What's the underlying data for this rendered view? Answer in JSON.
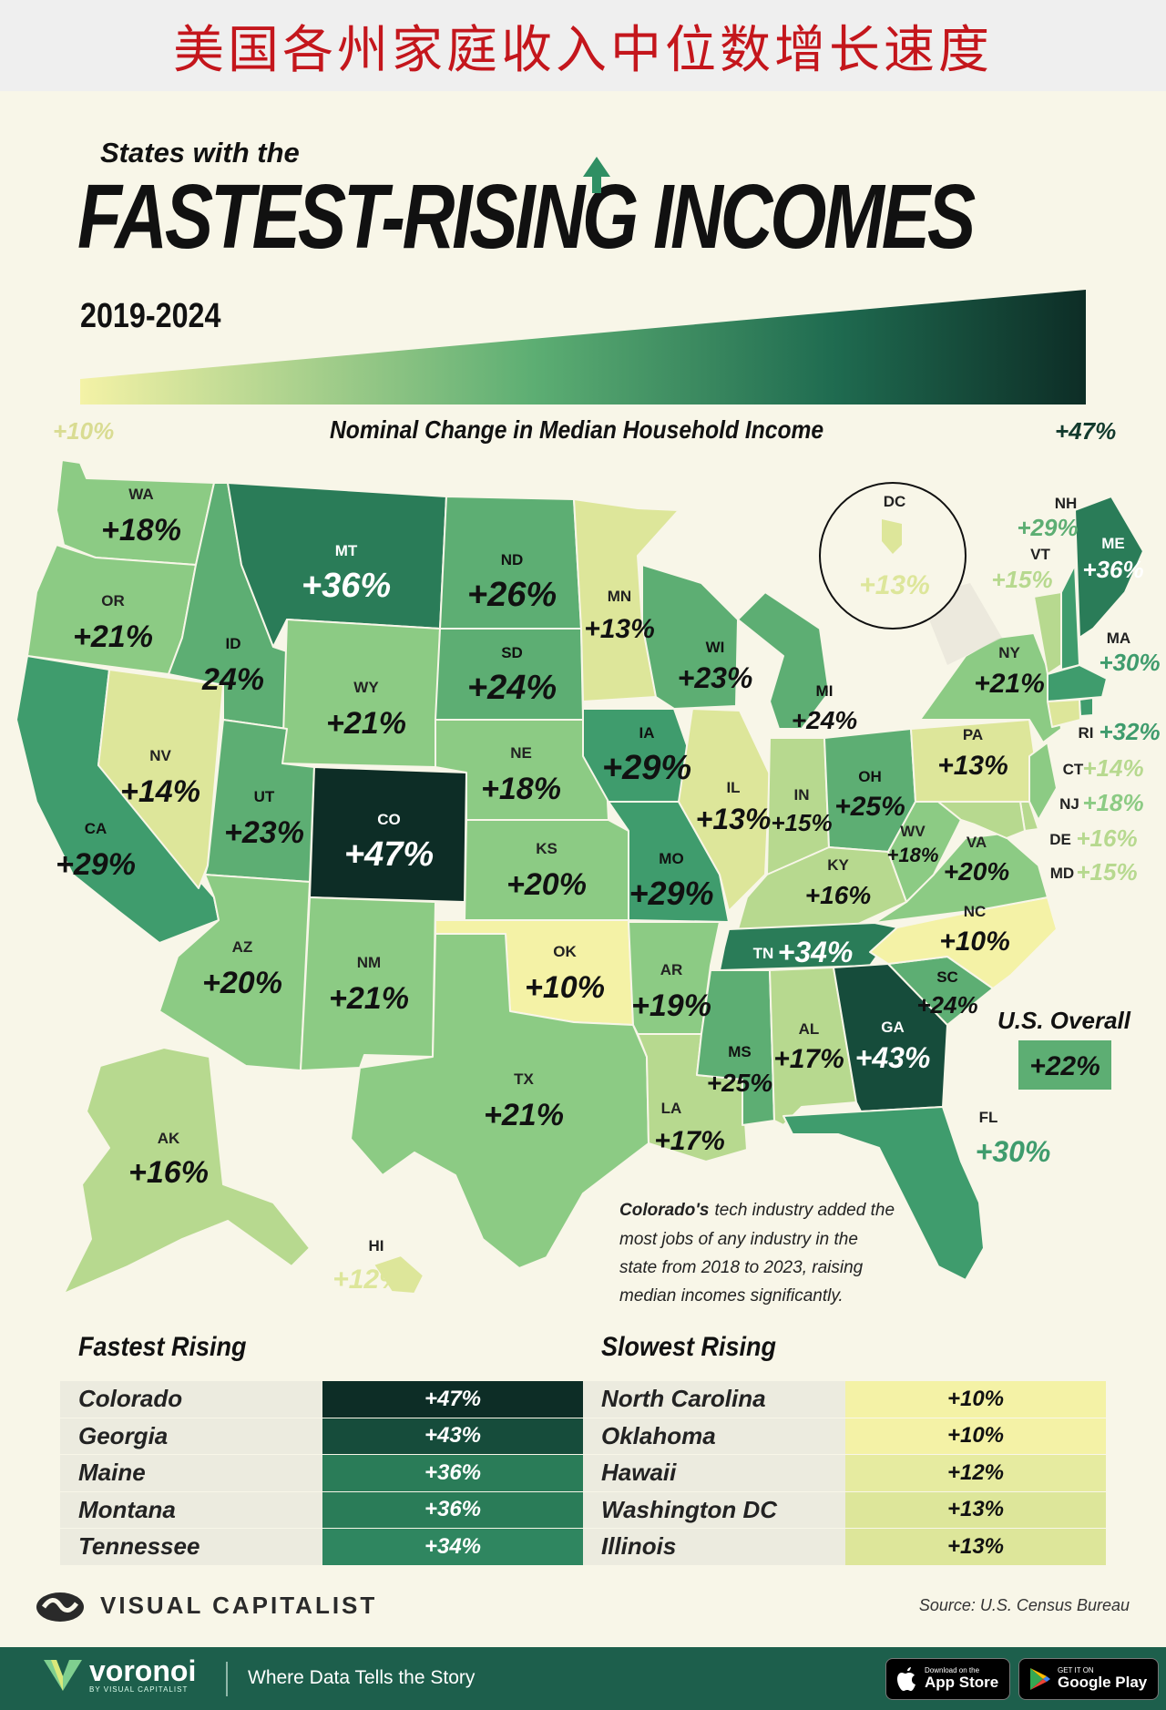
{
  "banner": {
    "cn_title": "美国各州家庭收入中位数增长速度"
  },
  "header": {
    "subtitle": "States with the",
    "title": "FASTEST-RISING INCOMES",
    "years": "2019-2024"
  },
  "legend": {
    "low": "+10%",
    "high": "+47%",
    "label": "Nominal Change in Median Household Income"
  },
  "colors": {
    "c10": "#f4f2a6",
    "c13": "#dde69a",
    "c16": "#b7d98f",
    "c20": "#8ccb84",
    "c24": "#5dae73",
    "c30": "#3f9c6d",
    "c35": "#2a7c58",
    "c43": "#164c3b",
    "c47": "#0d2d26"
  },
  "states": {
    "WA": {
      "code": "WA",
      "value": "+18%"
    },
    "OR": {
      "code": "OR",
      "value": "+21%"
    },
    "CA": {
      "code": "CA",
      "value": "+29%"
    },
    "NV": {
      "code": "NV",
      "value": "+14%"
    },
    "ID": {
      "code": "ID",
      "value": "24%"
    },
    "MT": {
      "code": "MT",
      "value": "+36%"
    },
    "WY": {
      "code": "WY",
      "value": "+21%"
    },
    "UT": {
      "code": "UT",
      "value": "+23%"
    },
    "CO": {
      "code": "CO",
      "value": "+47%"
    },
    "AZ": {
      "code": "AZ",
      "value": "+20%"
    },
    "NM": {
      "code": "NM",
      "value": "+21%"
    },
    "ND": {
      "code": "ND",
      "value": "+26%"
    },
    "SD": {
      "code": "SD",
      "value": "+24%"
    },
    "NE": {
      "code": "NE",
      "value": "+18%"
    },
    "KS": {
      "code": "KS",
      "value": "+20%"
    },
    "OK": {
      "code": "OK",
      "value": "+10%"
    },
    "TX": {
      "code": "TX",
      "value": "+21%"
    },
    "MN": {
      "code": "MN",
      "value": "+13%"
    },
    "IA": {
      "code": "IA",
      "value": "+29%"
    },
    "MO": {
      "code": "MO",
      "value": "+29%"
    },
    "AR": {
      "code": "AR",
      "value": "+19%"
    },
    "LA": {
      "code": "LA",
      "value": "+17%"
    },
    "WI": {
      "code": "WI",
      "value": "+23%"
    },
    "IL": {
      "code": "IL",
      "value": "+13%"
    },
    "MI": {
      "code": "MI",
      "value": "+24%"
    },
    "IN": {
      "code": "IN",
      "value": "+15%"
    },
    "OH": {
      "code": "OH",
      "value": "+25%"
    },
    "KY": {
      "code": "KY",
      "value": "+16%"
    },
    "TN": {
      "code": "TN",
      "value": "+34%"
    },
    "MS": {
      "code": "MS",
      "value": "+25%"
    },
    "AL": {
      "code": "AL",
      "value": "+17%"
    },
    "GA": {
      "code": "GA",
      "value": "+43%"
    },
    "FL": {
      "code": "FL",
      "value": "+30%"
    },
    "SC": {
      "code": "SC",
      "value": "+24%"
    },
    "NC": {
      "code": "NC",
      "value": "+10%"
    },
    "VA": {
      "code": "VA",
      "value": "+20%"
    },
    "WV": {
      "code": "WV",
      "value": "+18%"
    },
    "PA": {
      "code": "PA",
      "value": "+13%"
    },
    "NY": {
      "code": "NY",
      "value": "+21%"
    },
    "VT": {
      "code": "VT",
      "value": "+15%"
    },
    "NH": {
      "code": "NH",
      "value": "+29%"
    },
    "ME": {
      "code": "ME",
      "value": "+36%"
    },
    "MA": {
      "code": "MA",
      "value": "+30%"
    },
    "RI": {
      "code": "RI",
      "value": "+32%"
    },
    "CT": {
      "code": "CT",
      "value": "+14%"
    },
    "NJ": {
      "code": "NJ",
      "value": "+18%"
    },
    "DE": {
      "code": "DE",
      "value": "+16%"
    },
    "MD": {
      "code": "MD",
      "value": "+15%"
    },
    "DC": {
      "code": "DC",
      "value": "+13%"
    },
    "AK": {
      "code": "AK",
      "value": "+16%"
    },
    "HI": {
      "code": "HI",
      "value": "+12%"
    }
  },
  "us_overall": {
    "label": "U.S. Overall",
    "value": "+22%"
  },
  "annotation": {
    "bold": "Colorado's",
    "line1": "tech industry added the",
    "line2": "most jobs of any industry in the",
    "line3": "state from 2018 to 2023, raising",
    "line4": "median incomes significantly."
  },
  "fastest": {
    "title": "Fastest Rising",
    "rows": [
      {
        "state": "Colorado",
        "value": "+47%"
      },
      {
        "state": "Georgia",
        "value": "+43%"
      },
      {
        "state": "Maine",
        "value": "+36%"
      },
      {
        "state": "Montana",
        "value": "+36%"
      },
      {
        "state": "Tennessee",
        "value": "+34%"
      }
    ]
  },
  "slowest": {
    "title": "Slowest Rising",
    "rows": [
      {
        "state": "North Carolina",
        "value": "+10%"
      },
      {
        "state": "Oklahoma",
        "value": "+10%"
      },
      {
        "state": "Hawaii",
        "value": "+12%"
      },
      {
        "state": "Washington DC",
        "value": "+13%"
      },
      {
        "state": "Illinois",
        "value": "+13%"
      }
    ]
  },
  "branding": {
    "vc": "VISUAL CAPITALIST",
    "source": "Source: U.S. Census Bureau",
    "voronoi": "voronoi",
    "voronoi_sub": "BY VISUAL CAPITALIST",
    "tagline": "Where Data Tells the Story",
    "appstore_small": "Download on the",
    "appstore_big": "App Store",
    "gplay_small": "GET IT ON",
    "gplay_big": "Google Play"
  }
}
